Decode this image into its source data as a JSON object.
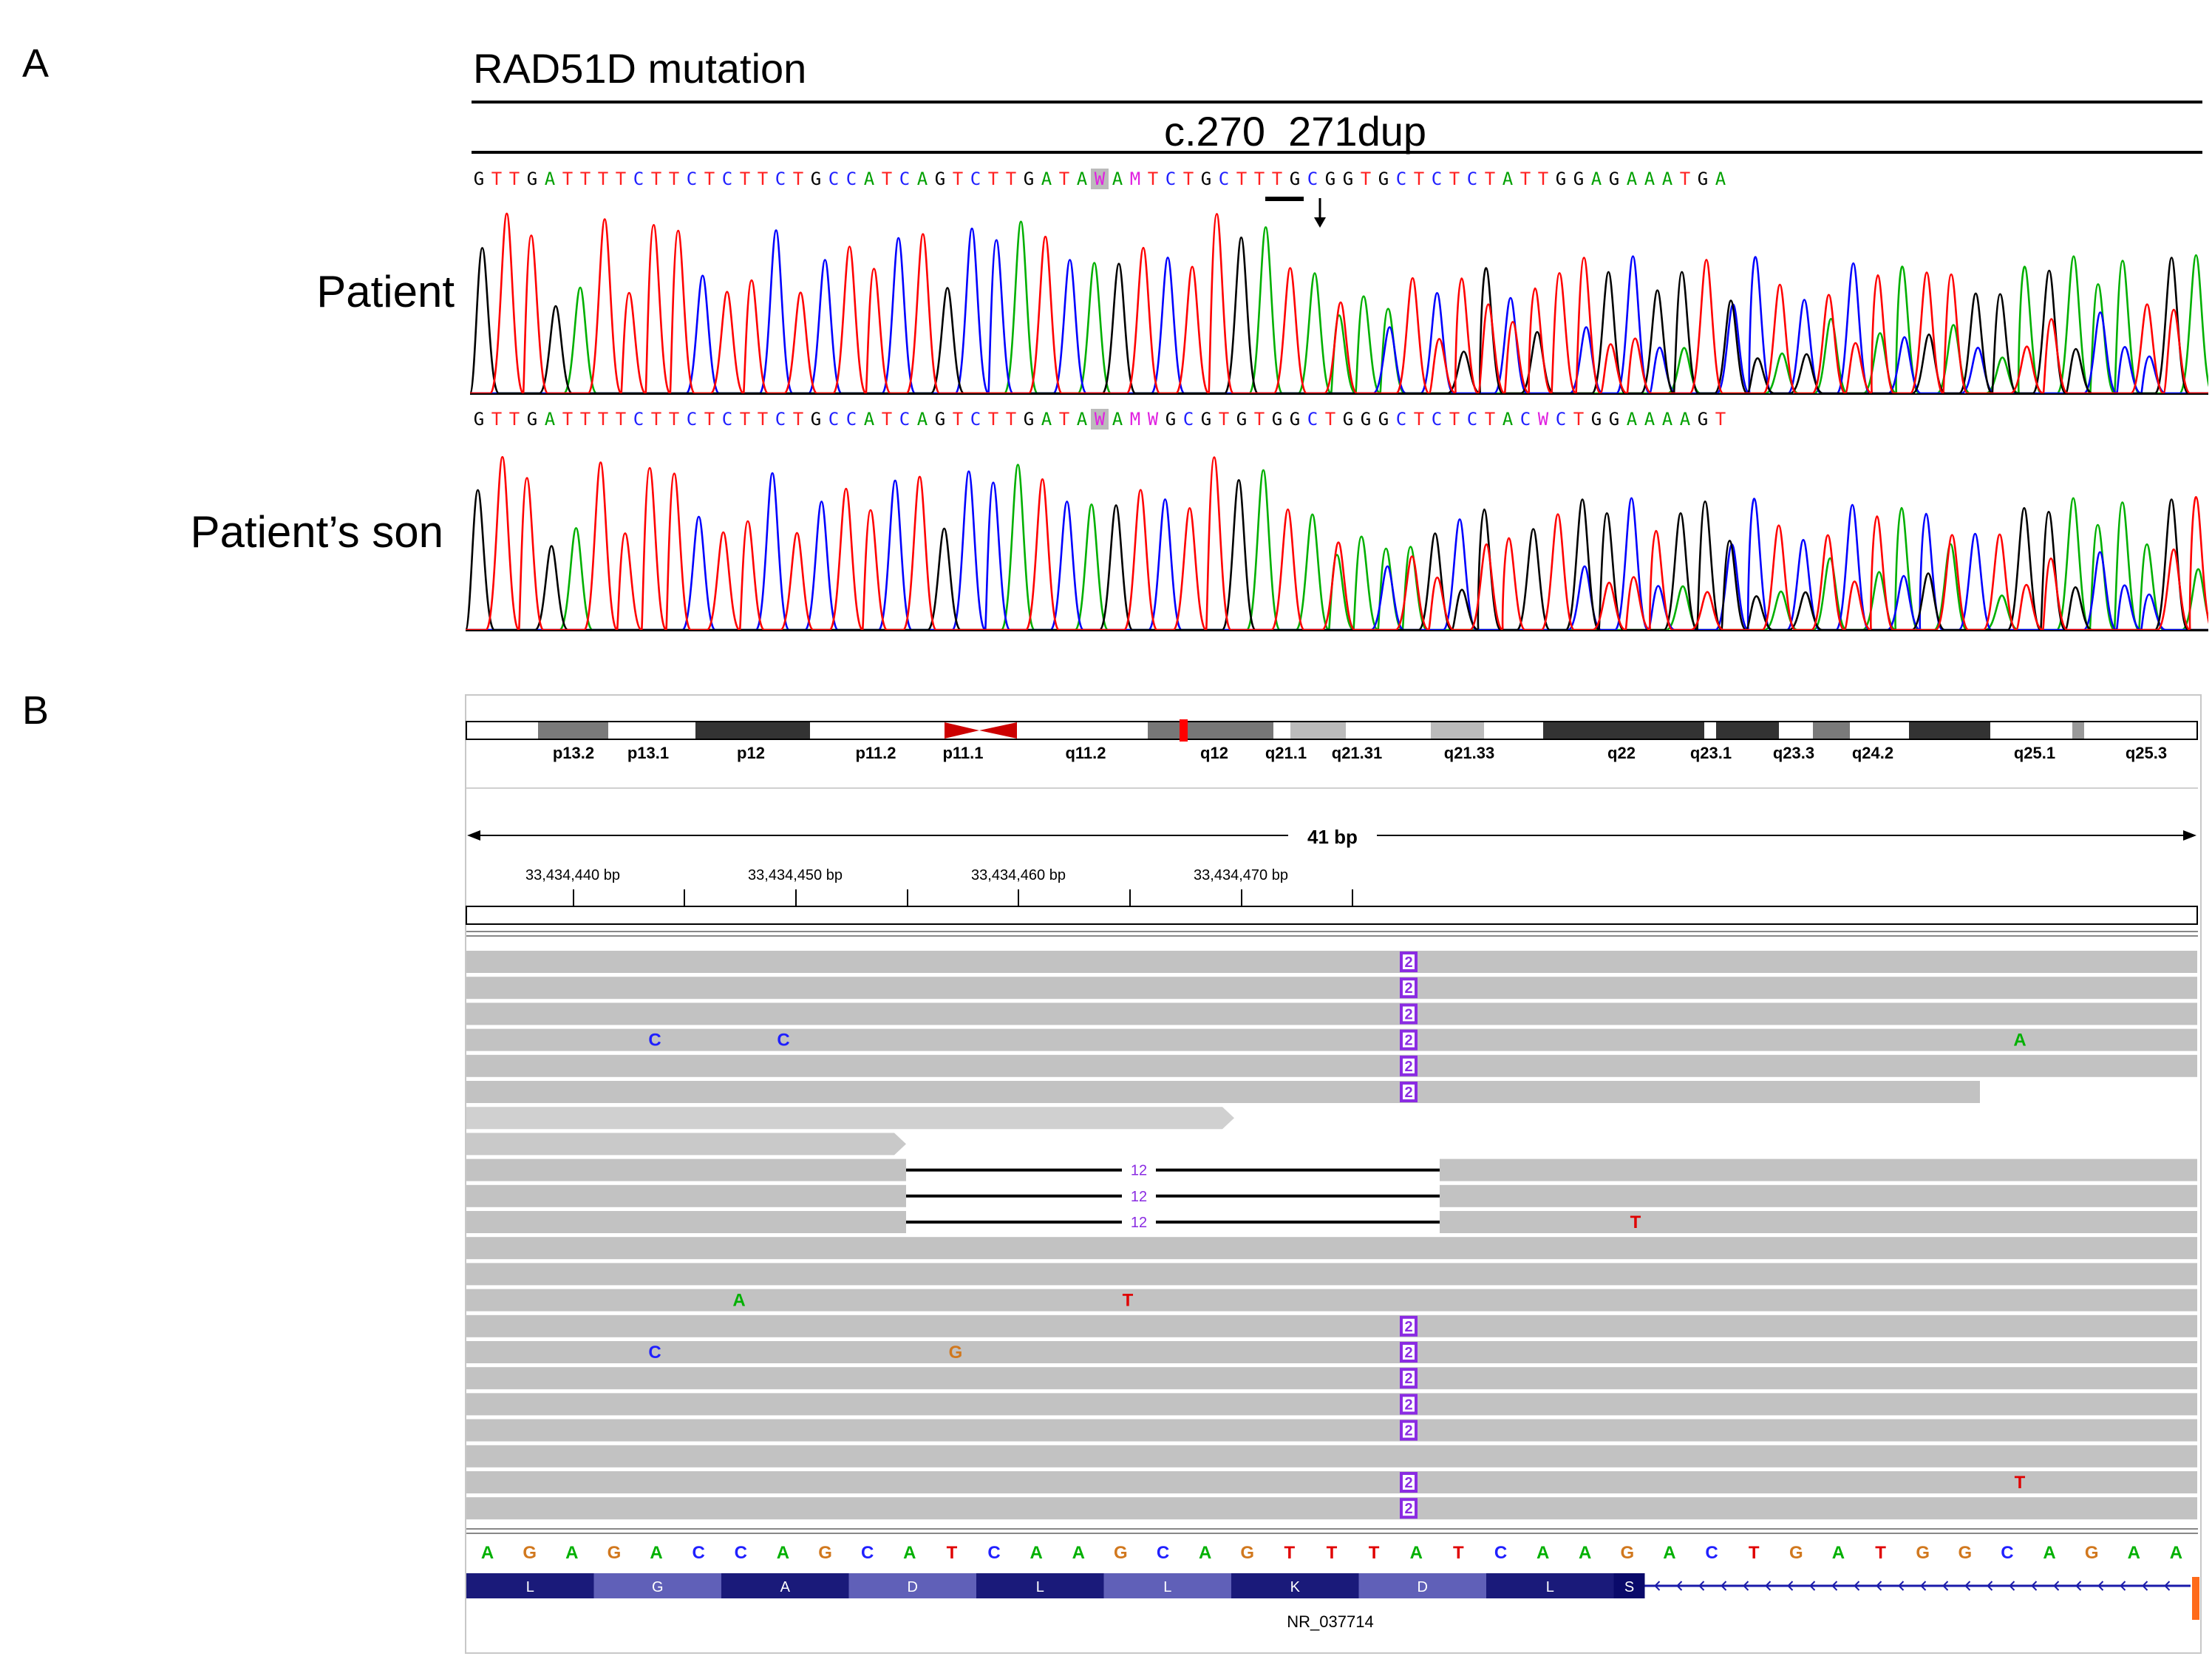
{
  "panelA": {
    "letter": "A",
    "gene_title": "RAD51D mutation",
    "mutation": "c.270_271dup",
    "samples": [
      {
        "label": "Patient",
        "sequence": "GTTGATTTTCTTCTCTTCTGCCATCAGTCTTGATAWAMTCTGCTTTGCGGTGCTCTCTATTGGAGAAATGA",
        "highlight_index": 35
      },
      {
        "label": "Patient’s son",
        "sequence": "GTTGATTTTCTTCTCTTCTGCCATCAGTCTTGATAWAMWGCGTGTGGCTGGGCTCTCTACWCTGGAAAAGT",
        "highlight_index": 35
      }
    ]
  },
  "panelB": {
    "letter": "B",
    "cytobands": [
      "p13.2",
      "p13.1",
      "p12",
      "p11.2",
      "p11.1",
      "q11.2",
      "q12",
      "q21.1",
      "q21.31",
      "q21.33",
      "q22",
      "q23.1",
      "q23.3",
      "q24.2",
      "q25.1",
      "q25.3"
    ],
    "span_label": "41 bp",
    "ruler_ticks": [
      "33,434,440 bp",
      "33,434,450 bp",
      "33,434,460 bp",
      "33,434,470 bp"
    ],
    "insertion_label": "2",
    "deletion_label": "12",
    "mismatches": [
      {
        "row": 3,
        "base": "C"
      },
      {
        "row": 3,
        "base": "C"
      },
      {
        "row": 3,
        "base": "A"
      },
      {
        "row": 10,
        "base": "T"
      },
      {
        "row": 13,
        "base": "A"
      },
      {
        "row": 13,
        "base": "T"
      },
      {
        "row": 15,
        "base": "C"
      },
      {
        "row": 15,
        "base": "G"
      },
      {
        "row": 20,
        "base": "T"
      }
    ],
    "reference_sequence": "AGAGACCAGCATCAAGCAGTTTATCAAGACTGATGGCAGAA",
    "amino_acids": [
      "L",
      "G",
      "A",
      "D",
      "L",
      "L",
      "K",
      "D",
      "L",
      "S"
    ],
    "transcript": "NR_037714",
    "base_colors": {
      "A": "#00b000",
      "C": "#2020ff",
      "G": "#d1781e",
      "T": "#e00000"
    }
  }
}
